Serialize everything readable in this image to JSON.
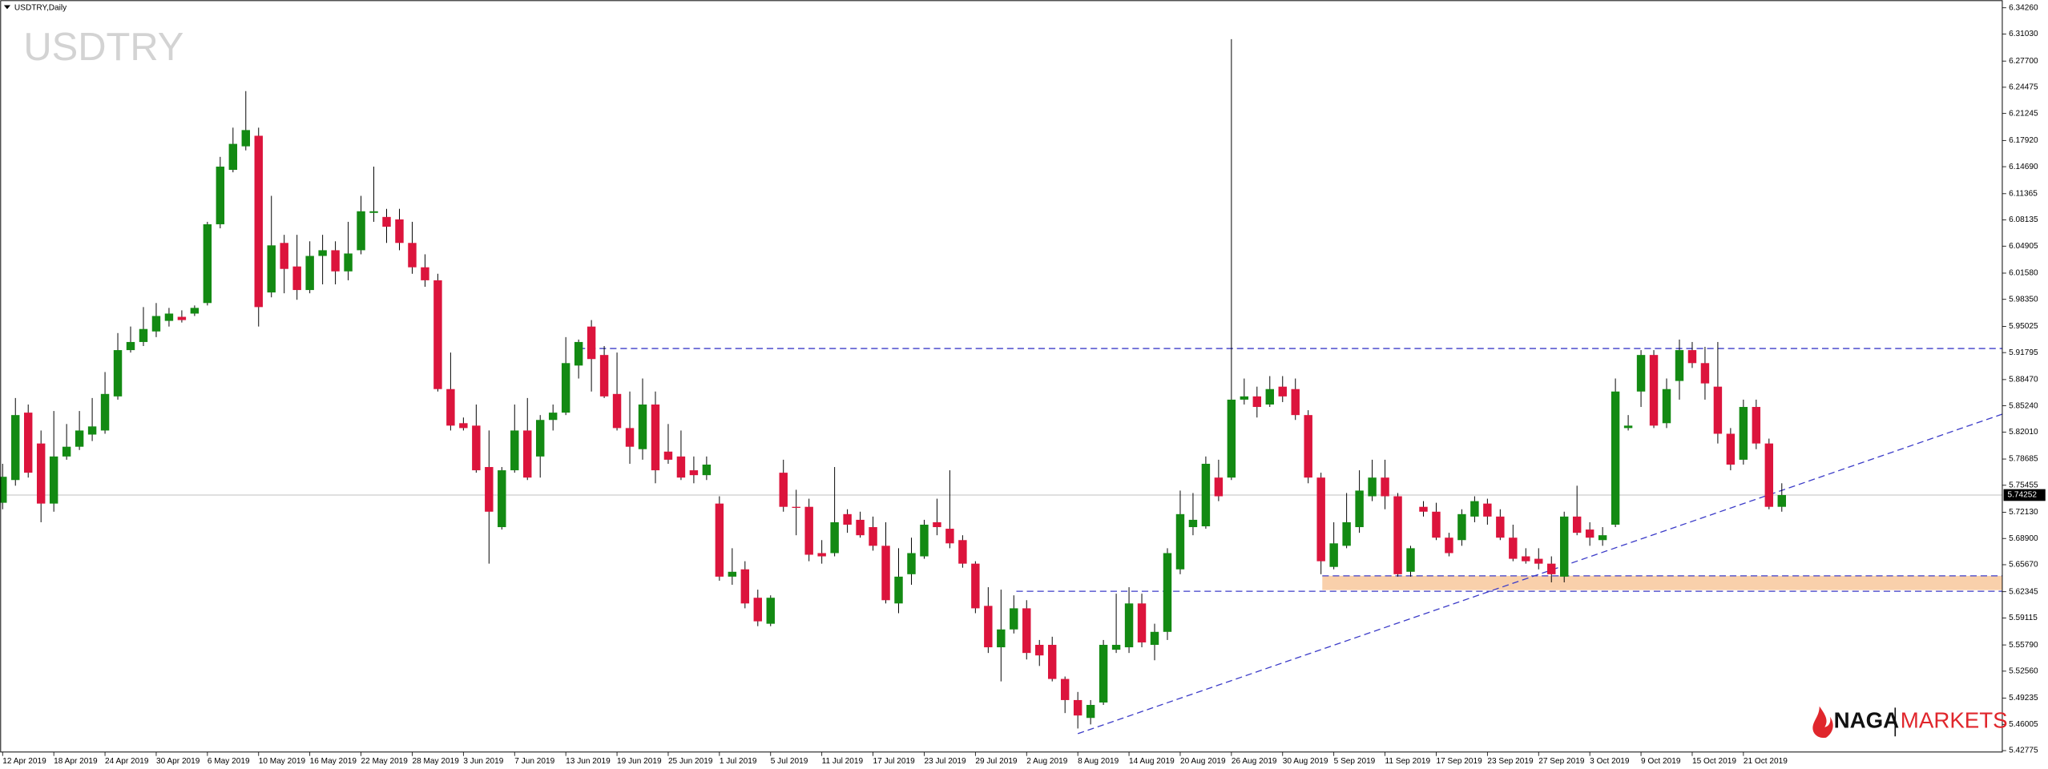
{
  "chart_data": {
    "type": "candlestick",
    "title": "USDTRY,Daily",
    "watermark": "USDTRY",
    "categories": [
      "12 Apr 2019",
      null,
      null,
      null,
      "18 Apr 2019",
      null,
      null,
      null,
      "24 Apr 2019",
      null,
      null,
      null,
      "30 Apr 2019",
      null,
      null,
      null,
      "6 May 2019",
      null,
      null,
      null,
      "10 May 2019",
      null,
      null,
      null,
      "16 May 2019",
      null,
      null,
      null,
      "22 May 2019",
      null,
      null,
      null,
      "28 May 2019",
      null,
      null,
      null,
      "3 Jun 2019",
      null,
      null,
      null,
      "7 Jun 2019",
      null,
      null,
      null,
      "13 Jun 2019",
      null,
      null,
      null,
      "19 Jun 2019",
      null,
      null,
      null,
      "25 Jun 2019",
      null,
      null,
      null,
      "1 Jul 2019",
      null,
      null,
      null,
      "5 Jul 2019",
      null,
      null,
      null,
      "11 Jul 2019",
      null,
      null,
      null,
      "17 Jul 2019",
      null,
      null,
      null,
      "23 Jul 2019",
      null,
      null,
      null,
      "29 Jul 2019",
      null,
      null,
      null,
      "2 Aug 2019",
      null,
      null,
      null,
      "8 Aug 2019",
      null,
      null,
      null,
      "14 Aug 2019",
      null,
      null,
      null,
      "20 Aug 2019",
      null,
      null,
      null,
      "26 Aug 2019",
      null,
      null,
      null,
      "30 Aug 2019",
      null,
      null,
      null,
      "5 Sep 2019",
      null,
      null,
      null,
      "11 Sep 2019",
      null,
      null,
      null,
      "17 Sep 2019",
      null,
      null,
      null,
      "23 Sep 2019",
      null,
      null,
      null,
      "27 Sep 2019",
      null,
      null,
      null,
      "3 Oct 2019",
      null,
      null,
      null,
      "9 Oct 2019",
      null,
      null,
      null,
      "15 Oct 2019",
      null,
      null,
      null,
      "21 Oct 2019",
      null,
      null,
      null
    ],
    "open": [
      5.733,
      5.761,
      5.844,
      5.806,
      5.732,
      5.79,
      5.802,
      5.817,
      5.822,
      5.864,
      5.921,
      5.931,
      5.944,
      5.957,
      5.962,
      5.966,
      5.979,
      6.076,
      6.143,
      6.172,
      6.185,
      5.992,
      6.053,
      6.024,
      5.995,
      6.037,
      6.044,
      6.018,
      6.044,
      6.09,
      6.085,
      6.082,
      6.053,
      6.023,
      6.007,
      5.873,
      5.831,
      5.828,
      5.777,
      5.703,
      5.773,
      5.822,
      5.79,
      5.835,
      5.844,
      5.902,
      5.95,
      5.915,
      5.867,
      5.825,
      5.799,
      5.854,
      5.796,
      5.79,
      5.773,
      5.767,
      5.732,
      5.642,
      5.651,
      5.616,
      5.584,
      5.77,
      5.728,
      5.728,
      5.671,
      5.671,
      5.719,
      5.712,
      5.703,
      5.68,
      5.609,
      5.645,
      5.667,
      5.709,
      5.701,
      5.687,
      5.658,
      5.606,
      5.555,
      5.577,
      5.603,
      5.558,
      5.558,
      5.516,
      5.49,
      5.468,
      5.487,
      5.552,
      5.555,
      5.609,
      5.558,
      5.574,
      5.651,
      5.703,
      5.704,
      5.764,
      5.764,
      5.86,
      5.864,
      5.854,
      5.876,
      5.873,
      5.841,
      5.764,
      5.654,
      5.68,
      5.703,
      5.741,
      5.764,
      5.741,
      5.648,
      5.728,
      5.722,
      5.69,
      5.687,
      5.716,
      5.732,
      5.716,
      5.69,
      5.667,
      5.664,
      5.658,
      5.642,
      5.716,
      5.7,
      5.687,
      5.706,
      5.825,
      5.87,
      5.915,
      5.831,
      5.883,
      5.921,
      5.905,
      5.876,
      5.818,
      5.786,
      5.851,
      5.806,
      5.728
    ],
    "high": [
      5.781,
      5.862,
      5.854,
      5.822,
      5.846,
      5.83,
      5.846,
      5.862,
      5.894,
      5.942,
      5.95,
      5.974,
      5.979,
      5.973,
      5.97,
      5.976,
      6.079,
      6.159,
      6.195,
      6.24,
      6.195,
      6.111,
      6.063,
      6.063,
      6.055,
      6.063,
      6.055,
      6.079,
      6.111,
      6.147,
      6.095,
      6.095,
      6.079,
      6.039,
      6.015,
      5.918,
      5.838,
      5.854,
      5.822,
      5.777,
      5.854,
      5.862,
      5.841,
      5.854,
      5.937,
      5.934,
      5.958,
      5.926,
      5.918,
      5.87,
      5.886,
      5.87,
      5.83,
      5.822,
      5.79,
      5.79,
      5.741,
      5.677,
      5.661,
      5.626,
      5.619,
      5.786,
      5.749,
      5.738,
      5.687,
      5.777,
      5.725,
      5.722,
      5.716,
      5.709,
      5.677,
      5.69,
      5.712,
      5.738,
      5.773,
      5.693,
      5.661,
      5.629,
      5.626,
      5.619,
      5.613,
      5.564,
      5.568,
      5.519,
      5.5,
      5.49,
      5.564,
      5.621,
      5.629,
      5.621,
      5.584,
      5.677,
      5.748,
      5.745,
      5.79,
      5.786,
      6.304,
      5.886,
      5.876,
      5.889,
      5.889,
      5.886,
      5.847,
      5.77,
      5.709,
      5.745,
      5.773,
      5.786,
      5.786,
      5.745,
      5.68,
      5.735,
      5.733,
      5.696,
      5.725,
      5.741,
      5.738,
      5.725,
      5.706,
      5.677,
      5.677,
      5.667,
      5.722,
      5.754,
      5.709,
      5.703,
      5.886,
      5.841,
      5.921,
      5.921,
      5.886,
      5.934,
      5.931,
      5.925,
      5.931,
      5.825,
      5.86,
      5.86,
      5.812,
      5.757
    ],
    "low": [
      5.725,
      5.754,
      5.764,
      5.709,
      5.722,
      5.786,
      5.798,
      5.809,
      5.818,
      5.86,
      5.918,
      5.926,
      5.937,
      5.95,
      5.955,
      5.963,
      5.976,
      6.071,
      6.14,
      6.167,
      5.95,
      5.986,
      5.991,
      5.983,
      5.991,
      6.002,
      6.002,
      6.007,
      6.039,
      6.079,
      6.053,
      6.044,
      6.015,
      5.999,
      5.87,
      5.822,
      5.822,
      5.77,
      5.658,
      5.7,
      5.77,
      5.761,
      5.764,
      5.822,
      5.841,
      5.886,
      5.87,
      5.862,
      5.822,
      5.781,
      5.786,
      5.757,
      5.781,
      5.761,
      5.757,
      5.761,
      5.637,
      5.632,
      5.603,
      5.581,
      5.581,
      5.722,
      5.693,
      5.661,
      5.658,
      5.667,
      5.696,
      5.69,
      5.674,
      5.609,
      5.597,
      5.632,
      5.664,
      5.693,
      5.677,
      5.653,
      5.597,
      5.548,
      5.513,
      5.572,
      5.54,
      5.532,
      5.513,
      5.474,
      5.455,
      5.46,
      5.484,
      5.548,
      5.548,
      5.555,
      5.539,
      5.564,
      5.645,
      5.693,
      5.701,
      5.735,
      5.761,
      5.854,
      5.838,
      5.851,
      5.857,
      5.835,
      5.757,
      5.645,
      5.651,
      5.677,
      5.696,
      5.735,
      5.725,
      5.642,
      5.642,
      5.716,
      5.687,
      5.667,
      5.68,
      5.709,
      5.706,
      5.687,
      5.661,
      5.658,
      5.651,
      5.635,
      5.635,
      5.693,
      5.68,
      5.68,
      5.703,
      5.822,
      5.851,
      5.825,
      5.825,
      5.86,
      5.899,
      5.86,
      5.806,
      5.773,
      5.78,
      5.799,
      5.725,
      5.722
    ],
    "close": [
      5.765,
      5.841,
      5.77,
      5.732,
      5.79,
      5.802,
      5.822,
      5.827,
      5.867,
      5.921,
      5.931,
      5.947,
      5.963,
      5.966,
      5.958,
      5.973,
      6.076,
      6.147,
      6.175,
      6.192,
      5.974,
      6.05,
      6.021,
      5.995,
      6.037,
      6.044,
      6.018,
      6.04,
      6.092,
      6.092,
      6.073,
      6.053,
      6.023,
      6.007,
      5.873,
      5.828,
      5.825,
      5.773,
      5.722,
      5.773,
      5.822,
      5.764,
      5.835,
      5.844,
      5.905,
      5.931,
      5.91,
      5.864,
      5.825,
      5.802,
      5.854,
      5.773,
      5.786,
      5.764,
      5.767,
      5.78,
      5.642,
      5.648,
      5.609,
      5.587,
      5.616,
      5.728,
      5.727,
      5.669,
      5.667,
      5.709,
      5.706,
      5.693,
      5.68,
      5.613,
      5.642,
      5.671,
      5.706,
      5.703,
      5.683,
      5.658,
      5.603,
      5.555,
      5.577,
      5.603,
      5.548,
      5.545,
      5.516,
      5.49,
      5.471,
      5.484,
      5.558,
      5.558,
      5.609,
      5.561,
      5.574,
      5.671,
      5.719,
      5.712,
      5.781,
      5.741,
      5.86,
      5.864,
      5.851,
      5.873,
      5.864,
      5.841,
      5.764,
      5.661,
      5.683,
      5.709,
      5.748,
      5.764,
      5.741,
      5.645,
      5.677,
      5.722,
      5.69,
      5.671,
      5.719,
      5.735,
      5.716,
      5.69,
      5.664,
      5.661,
      5.658,
      5.645,
      5.716,
      5.696,
      5.69,
      5.693,
      5.87,
      5.828,
      5.915,
      5.828,
      5.873,
      5.921,
      5.905,
      5.88,
      5.818,
      5.78,
      5.851,
      5.806,
      5.728,
      5.74252
    ],
    "up_color": "#138a13",
    "down_color": "#dc143c",
    "ylim": [
      5.426,
      6.3522
    ],
    "yticks": [
      {
        "value": 6.3426,
        "label": "6.34260"
      },
      {
        "value": 6.3103,
        "label": "6.31030"
      },
      {
        "value": 6.277,
        "label": "6.27700"
      },
      6.24475,
      6.21245,
      {
        "value": 6.1792,
        "label": "6.17920"
      },
      {
        "value": 6.1469,
        "label": "6.14690"
      },
      6.11365,
      6.08135,
      6.04905,
      {
        "value": 6.0158,
        "label": "6.01580"
      },
      {
        "value": 5.9835,
        "label": "5.98350"
      },
      5.95025,
      5.91795,
      {
        "value": 5.8847,
        "label": "5.88470"
      },
      {
        "value": 5.8524,
        "label": "5.85240"
      },
      {
        "value": 5.8201,
        "label": "5.82010"
      },
      5.78685,
      5.75455,
      {
        "value": 5.7213,
        "label": "5.72130"
      },
      {
        "value": 5.689,
        "label": "5.68900"
      },
      {
        "value": 5.6567,
        "label": "5.65670"
      },
      5.62345,
      5.59115,
      {
        "value": 5.5579,
        "label": "5.55790"
      },
      {
        "value": 5.5256,
        "label": "5.52560"
      },
      5.49235,
      5.46005,
      5.42775
    ],
    "grid": false,
    "drawings": [
      {
        "type": "zone",
        "x0": 103.1,
        "x1": 156.2,
        "y0": 5.643,
        "y1": 5.6255,
        "color": "#f9d0ab"
      },
      {
        "type": "segment",
        "x0": 45,
        "x1": 156.2,
        "y0": 5.923,
        "y1": 5.923,
        "color": "#3c3cc8"
      },
      {
        "type": "segment",
        "x0": 79.2,
        "x1": 156.2,
        "y0": 5.624,
        "y1": 5.624,
        "color": "#3c3cc8"
      },
      {
        "type": "segment",
        "x0": 103.1,
        "x1": 156.2,
        "y0": 5.643,
        "y1": 5.643,
        "color": "#3c3cc8"
      },
      {
        "type": "segment",
        "x0": 84,
        "x1": 156.2,
        "y0": 5.4486,
        "y1": 5.842,
        "color": "#3c3cc8"
      }
    ]
  },
  "logo": {
    "brand": "NAGA",
    "sub": "MARKETS"
  }
}
